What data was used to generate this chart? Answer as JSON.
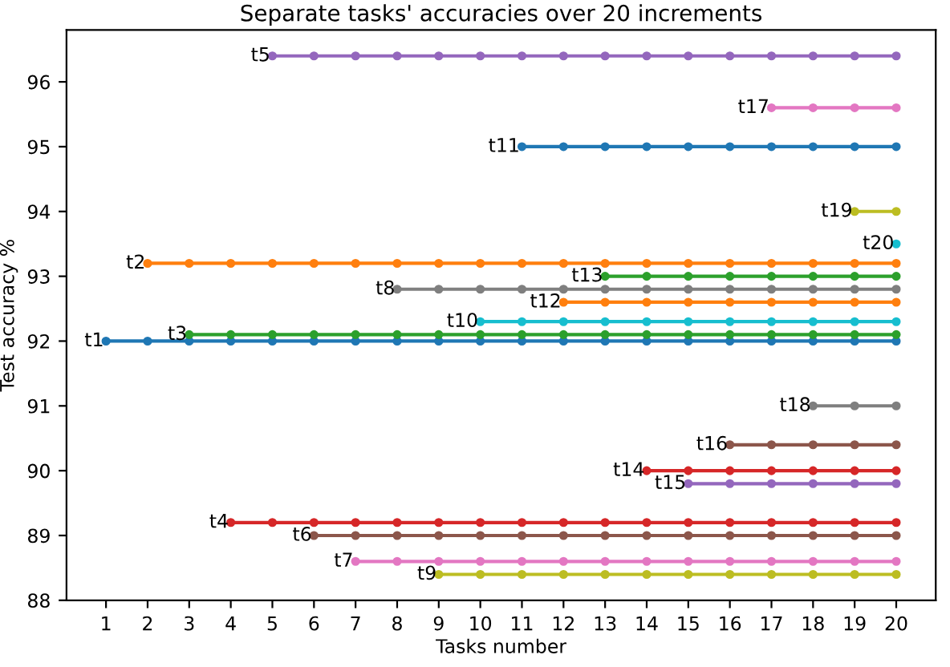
{
  "chart_data": {
    "type": "line",
    "title": "Separate tasks' accuracies over 20 increments",
    "xlabel": "Tasks number",
    "ylabel": "Test accuracy %",
    "marker": "circle",
    "line_style": "solid",
    "grid": false,
    "legend": false,
    "xlim": [
      0.05,
      20.95
    ],
    "xticks": [
      1,
      2,
      3,
      4,
      5,
      6,
      7,
      8,
      9,
      10,
      11,
      12,
      13,
      14,
      15,
      16,
      17,
      18,
      19,
      20
    ],
    "ylim": [
      88,
      96.8
    ],
    "yticks": [
      88,
      89,
      90,
      91,
      92,
      93,
      94,
      95,
      96
    ],
    "series": [
      {
        "name": "t1",
        "color": "#1f77b4",
        "x": [
          1,
          2,
          3,
          4,
          5,
          6,
          7,
          8,
          9,
          10,
          11,
          12,
          13,
          14,
          15,
          16,
          17,
          18,
          19,
          20
        ],
        "values": [
          92.0,
          92.0,
          92.0,
          92.0,
          92.0,
          92.0,
          92.0,
          92.0,
          92.0,
          92.0,
          92.0,
          92.0,
          92.0,
          92.0,
          92.0,
          92.0,
          92.0,
          92.0,
          92.0,
          92.0
        ]
      },
      {
        "name": "t2",
        "color": "#ff7f0e",
        "x": [
          2,
          3,
          4,
          5,
          6,
          7,
          8,
          9,
          10,
          11,
          12,
          13,
          14,
          15,
          16,
          17,
          18,
          19,
          20
        ],
        "values": [
          93.2,
          93.2,
          93.2,
          93.2,
          93.2,
          93.2,
          93.2,
          93.2,
          93.2,
          93.2,
          93.2,
          93.2,
          93.2,
          93.2,
          93.2,
          93.2,
          93.2,
          93.2,
          93.2
        ]
      },
      {
        "name": "t3",
        "color": "#2ca02c",
        "x": [
          3,
          4,
          5,
          6,
          7,
          8,
          9,
          10,
          11,
          12,
          13,
          14,
          15,
          16,
          17,
          18,
          19,
          20
        ],
        "values": [
          92.1,
          92.1,
          92.1,
          92.1,
          92.1,
          92.1,
          92.1,
          92.1,
          92.1,
          92.1,
          92.1,
          92.1,
          92.1,
          92.1,
          92.1,
          92.1,
          92.1,
          92.1
        ]
      },
      {
        "name": "t4",
        "color": "#d62728",
        "x": [
          4,
          5,
          6,
          7,
          8,
          9,
          10,
          11,
          12,
          13,
          14,
          15,
          16,
          17,
          18,
          19,
          20
        ],
        "values": [
          89.2,
          89.2,
          89.2,
          89.2,
          89.2,
          89.2,
          89.2,
          89.2,
          89.2,
          89.2,
          89.2,
          89.2,
          89.2,
          89.2,
          89.2,
          89.2,
          89.2
        ]
      },
      {
        "name": "t5",
        "color": "#9467bd",
        "x": [
          5,
          6,
          7,
          8,
          9,
          10,
          11,
          12,
          13,
          14,
          15,
          16,
          17,
          18,
          19,
          20
        ],
        "values": [
          96.4,
          96.4,
          96.4,
          96.4,
          96.4,
          96.4,
          96.4,
          96.4,
          96.4,
          96.4,
          96.4,
          96.4,
          96.4,
          96.4,
          96.4,
          96.4
        ]
      },
      {
        "name": "t6",
        "color": "#8c564b",
        "x": [
          6,
          7,
          8,
          9,
          10,
          11,
          12,
          13,
          14,
          15,
          16,
          17,
          18,
          19,
          20
        ],
        "values": [
          89.0,
          89.0,
          89.0,
          89.0,
          89.0,
          89.0,
          89.0,
          89.0,
          89.0,
          89.0,
          89.0,
          89.0,
          89.0,
          89.0,
          89.0
        ]
      },
      {
        "name": "t7",
        "color": "#e377c2",
        "x": [
          7,
          8,
          9,
          10,
          11,
          12,
          13,
          14,
          15,
          16,
          17,
          18,
          19,
          20
        ],
        "values": [
          88.6,
          88.6,
          88.6,
          88.6,
          88.6,
          88.6,
          88.6,
          88.6,
          88.6,
          88.6,
          88.6,
          88.6,
          88.6,
          88.6
        ]
      },
      {
        "name": "t8",
        "color": "#7f7f7f",
        "x": [
          8,
          9,
          10,
          11,
          12,
          13,
          14,
          15,
          16,
          17,
          18,
          19,
          20
        ],
        "values": [
          92.8,
          92.8,
          92.8,
          92.8,
          92.8,
          92.8,
          92.8,
          92.8,
          92.8,
          92.8,
          92.8,
          92.8,
          92.8
        ]
      },
      {
        "name": "t9",
        "color": "#bcbd22",
        "x": [
          9,
          10,
          11,
          12,
          13,
          14,
          15,
          16,
          17,
          18,
          19,
          20
        ],
        "values": [
          88.4,
          88.4,
          88.4,
          88.4,
          88.4,
          88.4,
          88.4,
          88.4,
          88.4,
          88.4,
          88.4,
          88.4
        ]
      },
      {
        "name": "t10",
        "color": "#17becf",
        "x": [
          10,
          11,
          12,
          13,
          14,
          15,
          16,
          17,
          18,
          19,
          20
        ],
        "values": [
          92.3,
          92.3,
          92.3,
          92.3,
          92.3,
          92.3,
          92.3,
          92.3,
          92.3,
          92.3,
          92.3
        ]
      },
      {
        "name": "t11",
        "color": "#1f77b4",
        "x": [
          11,
          12,
          13,
          14,
          15,
          16,
          17,
          18,
          19,
          20
        ],
        "values": [
          95.0,
          95.0,
          95.0,
          95.0,
          95.0,
          95.0,
          95.0,
          95.0,
          95.0,
          95.0
        ]
      },
      {
        "name": "t12",
        "color": "#ff7f0e",
        "x": [
          12,
          13,
          14,
          15,
          16,
          17,
          18,
          19,
          20
        ],
        "values": [
          92.6,
          92.6,
          92.6,
          92.6,
          92.6,
          92.6,
          92.6,
          92.6,
          92.6
        ]
      },
      {
        "name": "t13",
        "color": "#2ca02c",
        "x": [
          13,
          14,
          15,
          16,
          17,
          18,
          19,
          20
        ],
        "values": [
          93.0,
          93.0,
          93.0,
          93.0,
          93.0,
          93.0,
          93.0,
          93.0
        ]
      },
      {
        "name": "t14",
        "color": "#d62728",
        "x": [
          14,
          15,
          16,
          17,
          18,
          19,
          20
        ],
        "values": [
          90.0,
          90.0,
          90.0,
          90.0,
          90.0,
          90.0,
          90.0
        ]
      },
      {
        "name": "t15",
        "color": "#9467bd",
        "x": [
          15,
          16,
          17,
          18,
          19,
          20
        ],
        "values": [
          89.8,
          89.8,
          89.8,
          89.8,
          89.8,
          89.8
        ]
      },
      {
        "name": "t16",
        "color": "#8c564b",
        "x": [
          16,
          17,
          18,
          19,
          20
        ],
        "values": [
          90.4,
          90.4,
          90.4,
          90.4,
          90.4
        ]
      },
      {
        "name": "t17",
        "color": "#e377c2",
        "x": [
          17,
          18,
          19,
          20
        ],
        "values": [
          95.6,
          95.6,
          95.6,
          95.6
        ]
      },
      {
        "name": "t18",
        "color": "#7f7f7f",
        "x": [
          18,
          19,
          20
        ],
        "values": [
          91.0,
          91.0,
          91.0
        ]
      },
      {
        "name": "t19",
        "color": "#bcbd22",
        "x": [
          19,
          20
        ],
        "values": [
          94.0,
          94.0
        ]
      },
      {
        "name": "t20",
        "color": "#17becf",
        "x": [
          20
        ],
        "values": [
          93.5
        ]
      }
    ]
  }
}
